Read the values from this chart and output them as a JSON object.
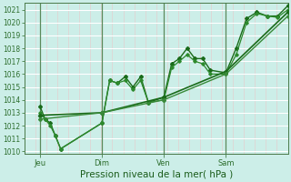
{
  "xlabel": "Pression niveau de la mer( hPa )",
  "bg_color": "#cceee8",
  "ylim": [
    1009.8,
    1021.5
  ],
  "yticks": [
    1010,
    1011,
    1012,
    1013,
    1014,
    1015,
    1016,
    1017,
    1018,
    1019,
    1020,
    1021
  ],
  "xlim": [
    -2,
    100
  ],
  "xtick_positions": [
    4,
    28,
    52,
    76
  ],
  "xtick_labels": [
    "Jeu",
    "Dim",
    "Ven",
    "Sam"
  ],
  "vlines": [
    4,
    28,
    52,
    76
  ],
  "series": [
    {
      "x": [
        4,
        6,
        8,
        10,
        12,
        28,
        31,
        34,
        37,
        40,
        43,
        46,
        52,
        55,
        58,
        61,
        64,
        67,
        70,
        76,
        80,
        84,
        88,
        92,
        96,
        100
      ],
      "y": [
        1013.5,
        1012.5,
        1012.2,
        1011.2,
        1010.2,
        1012.2,
        1015.5,
        1015.3,
        1015.8,
        1015.0,
        1015.8,
        1013.8,
        1014.2,
        1016.8,
        1017.2,
        1018.0,
        1017.2,
        1017.2,
        1016.3,
        1016.1,
        1018.0,
        1020.3,
        1020.8,
        1020.5,
        1020.5,
        1021.3
      ],
      "color": "#1a6b1a",
      "lw": 1.0,
      "marker": "D",
      "ms": 2.0
    },
    {
      "x": [
        4,
        6,
        8,
        10,
        12,
        28,
        31,
        34,
        37,
        40,
        43,
        46,
        52,
        55,
        58,
        61,
        64,
        67,
        70,
        76,
        80,
        84,
        88,
        92,
        96,
        100
      ],
      "y": [
        1013.0,
        1012.5,
        1012.0,
        1011.2,
        1010.2,
        1012.2,
        1015.5,
        1015.3,
        1015.5,
        1014.8,
        1015.5,
        1013.8,
        1014.0,
        1016.5,
        1017.0,
        1017.5,
        1017.0,
        1016.8,
        1016.0,
        1016.0,
        1017.5,
        1020.0,
        1020.7,
        1020.5,
        1020.4,
        1021.0
      ],
      "color": "#2d8a2d",
      "lw": 0.9,
      "marker": "D",
      "ms": 1.8
    },
    {
      "x": [
        4,
        28,
        52,
        76,
        100
      ],
      "y": [
        1012.8,
        1013.0,
        1014.2,
        1016.2,
        1020.8
      ],
      "color": "#1a6b1a",
      "lw": 1.2,
      "marker": "D",
      "ms": 2.2
    },
    {
      "x": [
        4,
        28,
        52,
        76,
        100
      ],
      "y": [
        1012.5,
        1013.0,
        1014.0,
        1016.0,
        1020.5
      ],
      "color": "#3a8a3a",
      "lw": 1.0,
      "marker": "D",
      "ms": 2.0
    }
  ]
}
